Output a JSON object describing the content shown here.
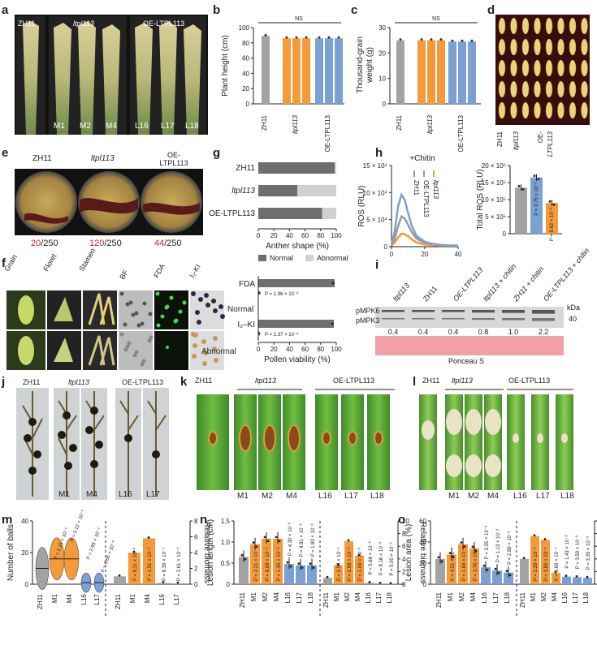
{
  "labels": {
    "a": "a",
    "b": "b",
    "c": "c",
    "d": "d",
    "e": "e",
    "f": "f",
    "g": "g",
    "h": "h",
    "i": "i",
    "j": "j",
    "k": "k",
    "l": "l",
    "m": "m",
    "n": "n",
    "o": "o"
  },
  "panel_a": {
    "top": [
      "ZH11",
      "ltpl113",
      "OE-LTPL113"
    ],
    "bottom": [
      "M1",
      "M2",
      "M4",
      "L16",
      "L17",
      "L18"
    ]
  },
  "panel_e": {
    "top": [
      "ZH11",
      "ltpl113",
      "OE-LTPL113"
    ],
    "counts": [
      {
        "n": "20",
        "d": "/250"
      },
      {
        "n": "120",
        "d": "/250"
      },
      {
        "n": "44",
        "d": "/250"
      }
    ]
  },
  "panel_f": {
    "cols": [
      "Grain",
      "Floret",
      "Stamen",
      "BF",
      "FDA",
      "I₂-KI"
    ],
    "rows": [
      "Normal",
      "Abnormal"
    ]
  },
  "panel_i": {
    "lanes": [
      "ltpl113",
      "ZH11",
      "OE-LTPL113",
      "ltpl113 + chitin",
      "ZH11 + chitin",
      "OE-LTPL113 + chitin"
    ],
    "bands": [
      "pMPK6",
      "pMPK3"
    ],
    "kda": "kDa",
    "marker": "40",
    "values": [
      "0.4",
      "0.4",
      "0.4",
      "0.8",
      "1.0",
      "2.2"
    ],
    "stain": "Ponceau S"
  },
  "panel_j": {
    "top": [
      "ZH11",
      "ltpl113",
      "OE-LTPL113"
    ],
    "bottom": [
      "M1",
      "M4",
      "L16",
      "L17"
    ]
  },
  "panel_k": {
    "top": [
      "ZH11",
      "ltpl113",
      "OE-LTPL113"
    ],
    "bottom": [
      "M1",
      "M2",
      "M4",
      "L16",
      "L17",
      "L18"
    ]
  },
  "panel_l": {
    "top": [
      "ZH11",
      "ltpl113",
      "OE-LTPL113"
    ],
    "bottom": [
      "M1",
      "M2",
      "M4",
      "L16",
      "L17",
      "L18"
    ]
  },
  "chart_data": [
    {
      "id": "b",
      "type": "bar",
      "categories": [
        "ZH11",
        "ltpl113",
        "OE-LTPL113"
      ],
      "series": [
        {
          "name": "Plant height",
          "values": [
            89,
            86,
            86
          ]
        }
      ],
      "ylabel": "Plant height (cm)",
      "ylim": [
        0,
        100
      ],
      "yticks": [
        "0",
        "20",
        "40",
        "60",
        "80",
        "100"
      ],
      "annotation": "NS"
    },
    {
      "id": "c",
      "type": "bar",
      "categories": [
        "ZH11",
        "ltpl113",
        "OE-LTPL113"
      ],
      "series": [
        {
          "name": "Thousand-grain weight",
          "values": [
            25,
            25,
            24.5
          ]
        }
      ],
      "ylabel": "Thousand-grain weight (g)",
      "ylim": [
        0,
        30
      ],
      "yticks": [
        "0",
        "10",
        "20",
        "30"
      ],
      "annotation": "NS"
    },
    {
      "id": "g1",
      "type": "bar",
      "orientation": "horizontal-stacked",
      "categories": [
        "ZH11",
        "ltpl113",
        "OE-LTPL113"
      ],
      "series": [
        {
          "name": "Normal",
          "values": [
            98,
            50,
            82
          ]
        },
        {
          "name": "Abnormal",
          "values": [
            2,
            50,
            18
          ]
        }
      ],
      "xlabel": "Anther shape (%)",
      "xlim": [
        0,
        100
      ],
      "xticks": [
        "0",
        "20",
        "40",
        "60",
        "80",
        "100"
      ],
      "legend": [
        "Normal",
        "Abnormal"
      ]
    },
    {
      "id": "g2",
      "type": "bar",
      "orientation": "horizontal",
      "categories": [
        "FDA",
        "I₂–KI"
      ],
      "series": [
        {
          "name": "Normal",
          "values": [
            98,
            97
          ]
        },
        {
          "name": "Abnormal",
          "values": [
            2,
            1
          ]
        }
      ],
      "xlabel": "Pollen viability (%)",
      "xlim": [
        0,
        100
      ],
      "xticks": [
        "0",
        "20",
        "40",
        "60",
        "80",
        "100"
      ],
      "pvalues": [
        "P = 1.96 × 10⁻⁶",
        "P = 2.37 × 10⁻⁶"
      ]
    },
    {
      "id": "h1",
      "type": "line",
      "title": "+Chitin",
      "x": [
        0,
        2,
        4,
        6,
        8,
        10,
        12,
        15,
        20,
        25,
        30,
        35,
        40
      ],
      "series": [
        {
          "name": "ZH11",
          "color": "#999999",
          "values": [
            0.3,
            1.5,
            3.8,
            5.6,
            5.2,
            4.0,
            2.8,
            1.5,
            0.7,
            0.4,
            0.3,
            0.2,
            0.2
          ]
        },
        {
          "name": "OE-LTPL113",
          "color": "#7aa0d4",
          "values": [
            0.4,
            3.0,
            7.5,
            9.6,
            8.6,
            6.2,
            4.0,
            2.0,
            0.9,
            0.5,
            0.3,
            0.2,
            0.2
          ]
        },
        {
          "name": "ltpl113",
          "color": "#f59a3a",
          "values": [
            0.2,
            0.8,
            1.7,
            2.4,
            2.3,
            1.9,
            1.4,
            0.8,
            0.4,
            0.3,
            0.2,
            0.2,
            0.2
          ]
        }
      ],
      "ylabel": "ROS (RLU)",
      "ylim": [
        0,
        15
      ],
      "yticks": [
        "0",
        "5 × 10⁴",
        "10 × 10⁴",
        "15 × 10⁴"
      ],
      "xticks": [
        "0",
        "20",
        "40"
      ]
    },
    {
      "id": "h2",
      "type": "bar",
      "categories": [
        "ZH11",
        "OE-LTPL113",
        "ltpl113"
      ],
      "series": [
        {
          "name": "Total ROS",
          "values": [
            13.5,
            16.5,
            9
          ]
        }
      ],
      "ylabel": "Total ROS (RLU)",
      "ylim": [
        0,
        20
      ],
      "yticks": [
        "0",
        "5 × 10⁵",
        "10 × 10⁵",
        "15 × 10⁵",
        "20 × 10⁵"
      ],
      "pvalues": [
        "P = 3.75 × 10⁻³",
        "P = 9.62 × 10⁻³"
      ]
    },
    {
      "id": "m",
      "type": "violin+bar",
      "categories": [
        "ZH11",
        "M1",
        "M4",
        "L16",
        "L17"
      ],
      "left": {
        "ylabel": "Number of balls",
        "ylim": [
          0,
          40
        ],
        "yticks": [
          "0",
          "20",
          "40"
        ],
        "medians": [
          10,
          16,
          16,
          1,
          1
        ],
        "pvalues": [
          "P = 1.15 × 10⁻⁵",
          "P = 3.12 × 10⁻⁵",
          "P = 2.85 × 10⁻⁵",
          "P = 9.66 × 10⁻⁶"
        ]
      },
      "right": {
        "ylabel": "Relative biomass",
        "ylim": [
          0,
          8
        ],
        "yticks": [
          "0",
          "2",
          "4",
          "6",
          "8"
        ],
        "categories": [
          "ZH11",
          "M1",
          "M4",
          "L16",
          "L17"
        ],
        "values": [
          1.0,
          4.0,
          5.8,
          0.15,
          0.1
        ],
        "pvalues": [
          "P = 8.11 × 10⁻⁸",
          "P = 1.51 × 10⁻⁵",
          "P = 8.39 × 10⁻⁵",
          "P = 2.61 × 10⁻⁵"
        ]
      }
    },
    {
      "id": "n",
      "type": "bar",
      "categories": [
        "ZH11",
        "M1",
        "M2",
        "M4",
        "L16",
        "L17",
        "L18"
      ],
      "left": {
        "ylabel": "Lesion length (cm)",
        "ylim": [
          0,
          1.5
        ],
        "yticks": [
          "0",
          "0.5",
          "1.0",
          "1.5"
        ],
        "values": [
          0.65,
          0.95,
          1.08,
          1.08,
          0.48,
          0.45,
          0.45
        ],
        "pvalues": [
          "P = 2.21 × 10⁻⁴",
          "P = 8.08 × 10⁻⁴",
          "P = 1.35 × 10⁻³",
          "P = 4.30 × 10⁻³",
          "P = 4.81 × 10⁻³",
          "P = 1.80 × 10⁻³"
        ]
      },
      "right": {
        "ylabel": "Relative biomass",
        "ylim": [
          0,
          10
        ],
        "yticks": [
          "0",
          "2",
          "4",
          "6",
          "8",
          "10"
        ],
        "values": [
          1.0,
          3.0,
          6.8,
          4.5,
          0.2,
          0.1,
          0.05
        ],
        "pvalues": [
          "P = 2.54 × 10⁻⁴",
          "P = 2.98 × 10⁻⁴",
          "P = 1.09 × 10⁻³",
          "P = 5.68 × 10⁻³",
          "P = 8.16 × 10⁻³",
          "P = 5.00 × 10⁻³"
        ]
      }
    },
    {
      "id": "o",
      "type": "bar",
      "categories": [
        "ZH11",
        "M1",
        "M2",
        "M4",
        "L16",
        "L17",
        "L18"
      ],
      "left": {
        "ylabel": "Lesion area (%)",
        "ylim": [
          0,
          60
        ],
        "yticks": [
          "0",
          "20",
          "40",
          "60"
        ],
        "values": [
          24,
          28,
          38,
          34,
          16,
          13,
          11
        ],
        "pvalues": [
          "P = 4.51 × 10⁻⁴",
          "P = 1.84 × 10⁻⁴",
          "P = 3.76 × 10⁻⁴",
          "P = 3.55 × 10⁻³",
          "P = 1.13 × 10⁻³",
          "P = 2.89 × 10⁻³"
        ]
      },
      "right": {
        "ylabel": "Relative biomass",
        "ylim": [
          0,
          2.5
        ],
        "yticks": [
          "0",
          "0.5",
          "1.0",
          "1.5",
          "2.0",
          "2.5"
        ],
        "values": [
          1.0,
          1.9,
          1.75,
          0.45,
          0.3,
          0.28,
          0.25
        ],
        "pvalues": [
          "P = 2.29 × 10⁻⁴",
          "P = 3.82 × 10⁻⁴",
          "P = 6.69 × 10⁻⁴",
          "P = 1.43 × 10⁻³",
          "P = 3.59 × 10⁻³",
          "P = 3.35 × 10⁻³"
        ]
      }
    }
  ]
}
